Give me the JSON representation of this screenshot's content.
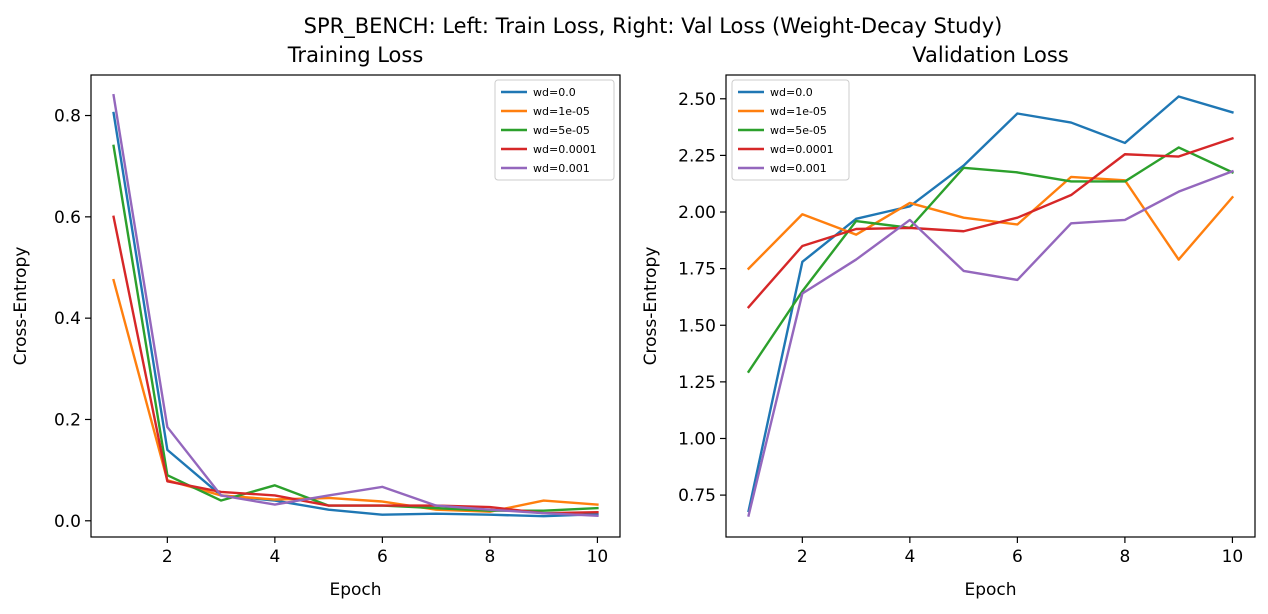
{
  "figure": {
    "suptitle": "SPR_BENCH: Left: Train Loss, Right: Val Loss (Weight-Decay Study)"
  },
  "colors": {
    "wd=0.0": "#1f77b4",
    "wd=1e-05": "#ff7f0e",
    "wd=5e-05": "#2ca02c",
    "wd=0.0001": "#d62728",
    "wd=0.001": "#9467bd"
  },
  "chart_data": [
    {
      "type": "line",
      "title": "Training Loss",
      "xlabel": "Epoch",
      "ylabel": "Cross-Entropy",
      "xlim": [
        0.58,
        10.42
      ],
      "ylim": [
        -0.032,
        0.88
      ],
      "xticks": [
        2,
        4,
        6,
        8,
        10
      ],
      "yticks": [
        0.0,
        0.2,
        0.4,
        0.6,
        0.8
      ],
      "ytick_labels": [
        "0.0",
        "0.2",
        "0.4",
        "0.6",
        "0.8"
      ],
      "legend": "top-right",
      "grid": false,
      "x": [
        1,
        2,
        3,
        4,
        5,
        6,
        7,
        8,
        9,
        10
      ],
      "series": [
        {
          "name": "wd=0.0",
          "values": [
            0.805,
            0.14,
            0.05,
            0.04,
            0.022,
            0.012,
            0.014,
            0.012,
            0.009,
            0.013
          ]
        },
        {
          "name": "wd=1e-05",
          "values": [
            0.475,
            0.08,
            0.05,
            0.042,
            0.045,
            0.038,
            0.022,
            0.018,
            0.04,
            0.032
          ]
        },
        {
          "name": "wd=5e-05",
          "values": [
            0.74,
            0.09,
            0.04,
            0.07,
            0.03,
            0.03,
            0.025,
            0.02,
            0.02,
            0.025
          ]
        },
        {
          "name": "wd=0.0001",
          "values": [
            0.6,
            0.078,
            0.057,
            0.05,
            0.03,
            0.03,
            0.03,
            0.027,
            0.015,
            0.017
          ]
        },
        {
          "name": "wd=0.001",
          "values": [
            0.84,
            0.185,
            0.05,
            0.032,
            0.05,
            0.067,
            0.03,
            0.022,
            0.015,
            0.01
          ]
        }
      ]
    },
    {
      "type": "line",
      "title": "Validation Loss",
      "xlabel": "Epoch",
      "ylabel": "Cross-Entropy",
      "xlim": [
        0.58,
        10.42
      ],
      "ylim": [
        0.565,
        2.605
      ],
      "xticks": [
        2,
        4,
        6,
        8,
        10
      ],
      "yticks": [
        0.75,
        1.0,
        1.25,
        1.5,
        1.75,
        2.0,
        2.25,
        2.5
      ],
      "ytick_labels": [
        "0.75",
        "1.00",
        "1.25",
        "1.50",
        "1.75",
        "2.00",
        "2.25",
        "2.50"
      ],
      "legend": "top-left",
      "grid": false,
      "x": [
        1,
        2,
        3,
        4,
        5,
        6,
        7,
        8,
        9,
        10
      ],
      "series": [
        {
          "name": "wd=0.0",
          "values": [
            0.68,
            1.78,
            1.97,
            2.025,
            2.205,
            2.435,
            2.395,
            2.305,
            2.51,
            2.44
          ]
        },
        {
          "name": "wd=1e-05",
          "values": [
            1.75,
            1.99,
            1.9,
            2.04,
            1.975,
            1.945,
            2.155,
            2.14,
            1.79,
            2.065
          ]
        },
        {
          "name": "wd=5e-05",
          "values": [
            1.295,
            1.65,
            1.96,
            1.93,
            2.195,
            2.175,
            2.135,
            2.135,
            2.285,
            2.175
          ]
        },
        {
          "name": "wd=0.0001",
          "values": [
            1.58,
            1.85,
            1.925,
            1.93,
            1.915,
            1.975,
            2.075,
            2.255,
            2.245,
            2.325
          ]
        },
        {
          "name": "wd=0.001",
          "values": [
            0.66,
            1.64,
            1.79,
            1.965,
            1.74,
            1.7,
            1.95,
            1.965,
            2.09,
            2.18
          ]
        }
      ]
    }
  ]
}
